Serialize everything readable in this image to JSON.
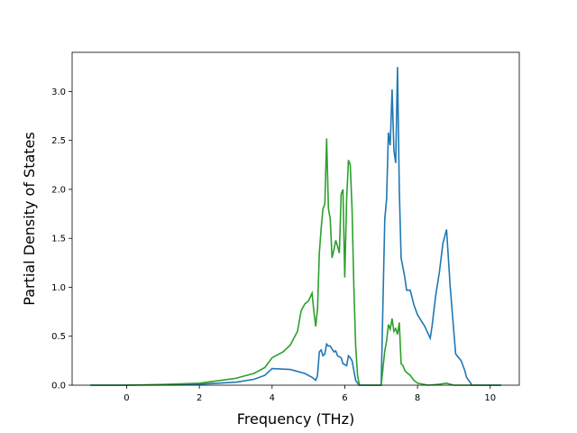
{
  "chart_data": {
    "type": "line",
    "title": "",
    "xlabel": "Frequency (THz)",
    "ylabel": "Partial Density of States",
    "xlim": [
      -1.5,
      10.8
    ],
    "ylim": [
      0,
      3.4
    ],
    "xticks": [
      0,
      2,
      4,
      6,
      8,
      10
    ],
    "xtick_labels": [
      "0",
      "2",
      "4",
      "6",
      "8",
      "10"
    ],
    "yticks": [
      0.0,
      0.5,
      1.0,
      1.5,
      2.0,
      2.5,
      3.0
    ],
    "ytick_labels": [
      "0.0",
      "0.5",
      "1.0",
      "1.5",
      "2.0",
      "2.5",
      "3.0"
    ],
    "grid": false,
    "legend": "none",
    "series": [
      {
        "color": "#1f77b4",
        "x": [
          -1.0,
          0.0,
          1.0,
          2.0,
          3.0,
          3.5,
          3.8,
          4.0,
          4.5,
          4.9,
          5.1,
          5.2,
          5.25,
          5.3,
          5.35,
          5.4,
          5.45,
          5.5,
          5.55,
          5.6,
          5.7,
          5.75,
          5.8,
          5.9,
          5.95,
          6.05,
          6.1,
          6.15,
          6.2,
          6.3,
          6.35,
          6.4,
          6.5,
          7.0,
          7.1,
          7.15,
          7.2,
          7.25,
          7.3,
          7.35,
          7.4,
          7.45,
          7.5,
          7.55,
          7.6,
          7.65,
          7.7,
          7.8,
          7.9,
          8.0,
          8.2,
          8.35,
          8.4,
          8.5,
          8.6,
          8.7,
          8.8,
          8.9,
          9.05,
          9.2,
          9.3,
          9.35,
          9.5,
          10.3
        ],
        "y": [
          0.0,
          0.0,
          0.003,
          0.01,
          0.03,
          0.06,
          0.1,
          0.17,
          0.16,
          0.12,
          0.08,
          0.05,
          0.1,
          0.34,
          0.36,
          0.3,
          0.32,
          0.42,
          0.4,
          0.4,
          0.34,
          0.35,
          0.3,
          0.28,
          0.22,
          0.2,
          0.3,
          0.28,
          0.25,
          0.05,
          0.02,
          0.0,
          0.0,
          0.0,
          1.7,
          1.9,
          2.58,
          2.45,
          3.02,
          2.4,
          2.27,
          3.25,
          2.0,
          1.3,
          1.2,
          1.1,
          0.97,
          0.97,
          0.82,
          0.72,
          0.6,
          0.48,
          0.6,
          0.92,
          1.15,
          1.45,
          1.59,
          1.0,
          0.32,
          0.25,
          0.15,
          0.08,
          0.0,
          0.0
        ]
      },
      {
        "color": "#2ca02c",
        "x": [
          -1.0,
          0.0,
          1.0,
          2.0,
          3.0,
          3.5,
          3.8,
          4.0,
          4.3,
          4.5,
          4.7,
          4.8,
          4.9,
          5.0,
          5.1,
          5.15,
          5.2,
          5.25,
          5.3,
          5.35,
          5.4,
          5.45,
          5.5,
          5.55,
          5.6,
          5.65,
          5.7,
          5.75,
          5.8,
          5.85,
          5.9,
          5.95,
          6.0,
          6.05,
          6.1,
          6.15,
          6.2,
          6.25,
          6.3,
          6.35,
          6.4,
          6.5,
          7.0,
          7.1,
          7.15,
          7.2,
          7.25,
          7.3,
          7.35,
          7.4,
          7.45,
          7.5,
          7.55,
          7.6,
          7.65,
          7.7,
          7.8,
          7.9,
          8.0,
          8.3,
          8.6,
          8.8,
          9.0,
          9.3,
          9.5,
          10.3
        ],
        "y": [
          0.0,
          0.0,
          0.007,
          0.02,
          0.07,
          0.12,
          0.18,
          0.28,
          0.34,
          0.41,
          0.55,
          0.76,
          0.83,
          0.86,
          0.94,
          0.75,
          0.6,
          0.78,
          1.35,
          1.6,
          1.8,
          1.85,
          2.52,
          1.8,
          1.7,
          1.3,
          1.38,
          1.48,
          1.42,
          1.35,
          1.95,
          2.0,
          1.1,
          1.9,
          2.3,
          2.25,
          1.8,
          1.0,
          0.4,
          0.1,
          0.0,
          0.0,
          0.0,
          0.35,
          0.45,
          0.62,
          0.57,
          0.68,
          0.55,
          0.58,
          0.52,
          0.64,
          0.22,
          0.2,
          0.15,
          0.13,
          0.1,
          0.05,
          0.02,
          0.0,
          0.01,
          0.02,
          0.0,
          0.0,
          0.0,
          0.0
        ]
      }
    ]
  }
}
